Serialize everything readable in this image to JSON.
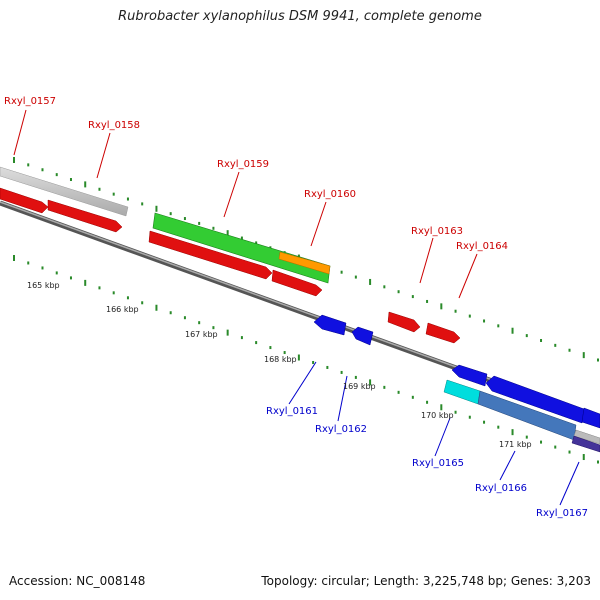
{
  "title": "Rubrobacter xylanophilus DSM 9941, complete genome",
  "footer": {
    "accession": "Accession: NC_008148",
    "summary": "Topology: circular; Length: 3,225,748 bp; Genes: 3,203"
  },
  "colors": {
    "forward_gene": "#ee1111",
    "reverse_gene": "#1111ee",
    "backbone": "#777777",
    "tick": "#2a8a2a",
    "rrna_gene": "#33cc33",
    "highlight_orange": "#ff9900",
    "highlight_cyan": "#00dddd",
    "steel_blue": "#4477bb",
    "grey_gene": "#bbbbbb"
  },
  "scale_labels": [
    "165 kbp",
    "166 kbp",
    "167 kbp",
    "168 kbp",
    "169 kbp",
    "170 kbp",
    "171 kbp"
  ],
  "forward_labels": [
    "Rxyl_0157",
    "Rxyl_0158",
    "Rxyl_0159",
    "Rxyl_0160",
    "Rxyl_0163",
    "Rxyl_0164"
  ],
  "reverse_labels": [
    "Rxyl_0161",
    "Rxyl_0162",
    "Rxyl_0165",
    "Rxyl_0166",
    "Rxyl_0167"
  ]
}
